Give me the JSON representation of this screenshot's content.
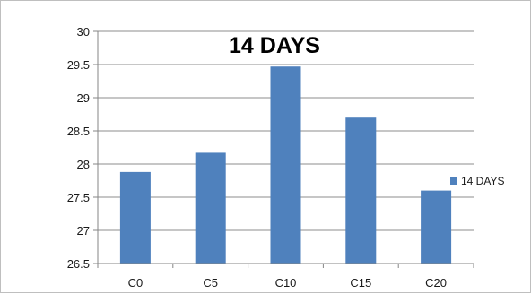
{
  "chart_data": {
    "type": "bar",
    "title": "14 DAYS",
    "xlabel": "",
    "ylabel": "",
    "categories": [
      "C0",
      "C5",
      "C10",
      "C15",
      "C20"
    ],
    "series": [
      {
        "name": "14 DAYS",
        "values": [
          27.88,
          28.17,
          29.47,
          28.7,
          27.6
        ]
      }
    ],
    "ylim": [
      26.5,
      30
    ],
    "yticks": [
      "26.5",
      "27",
      "27.5",
      "28",
      "28.5",
      "29",
      "29.5",
      "30"
    ],
    "grid": true,
    "legend_position": "right",
    "colors": {
      "bar": "#4f81bd",
      "grid": "#8c8c8c",
      "axis": "#868686",
      "text": "#1a1a1a"
    }
  }
}
